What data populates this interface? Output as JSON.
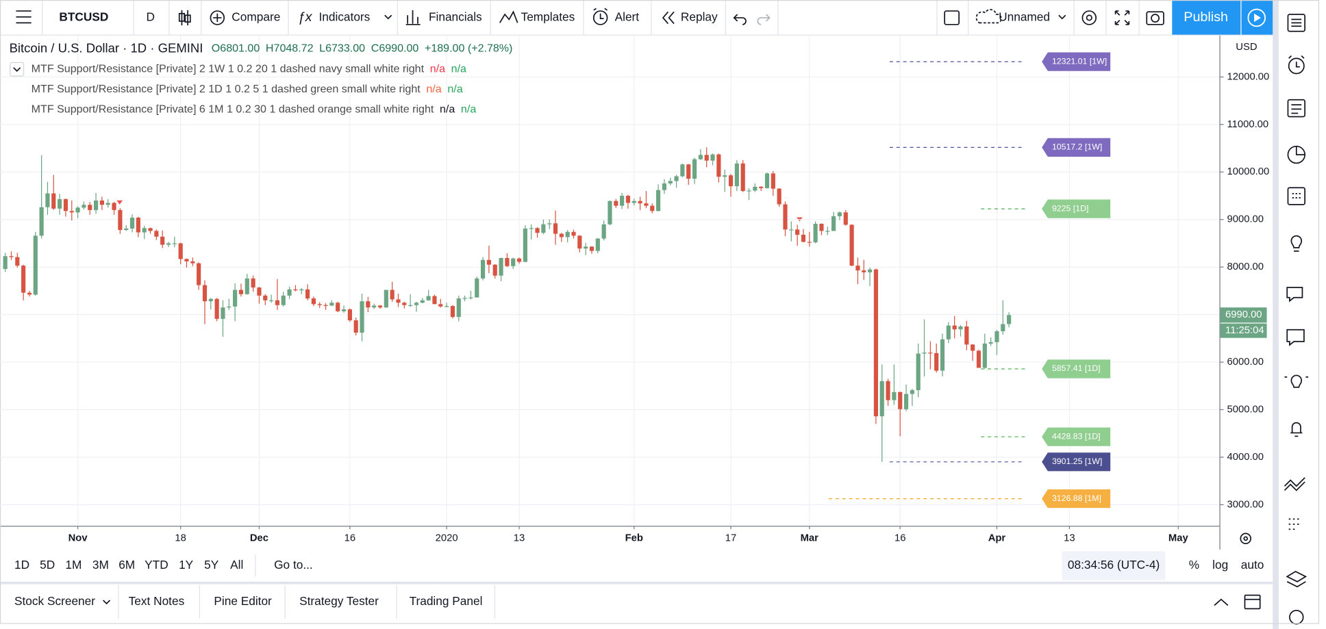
{
  "toolbar": {
    "symbol": "BTCUSD",
    "interval": "D",
    "buttons": [
      "Compare",
      "Indicators",
      "Financials",
      "Templates",
      "Alert",
      "Replay"
    ],
    "layout_name": "Unnamed",
    "publish": "Publish"
  },
  "chart_data": {
    "type": "candlestick",
    "title": "Bitcoin / U.S. Dollar · 1D · GEMINI",
    "ohlc": [
      "O6801.00",
      "H7048.72",
      "L6733.00",
      "C6990.00",
      "+189.00 (+2.78%)"
    ],
    "indicators": [
      {
        "text": "MTF Support/Resistance [Private] 2 1W 1 0.2 20 1 dashed navy small white right",
        "values": [
          {
            "text": "n/a",
            "color": "#f23645"
          },
          {
            "text": "n/a",
            "color": "#26a65b"
          }
        ]
      },
      {
        "text": "MTF Support/Resistance [Private] 2 1D 1 0.2 5 1 dashed green small white right",
        "values": [
          {
            "text": "n/a",
            "color": "#f0643c"
          },
          {
            "text": "n/a",
            "color": "#26a65b"
          }
        ]
      },
      {
        "text": "MTF Support/Resistance [Private] 6 1M 1 0.2 30 1 dashed orange small white right",
        "values": [
          {
            "text": "n/a",
            "color": "#131722"
          },
          {
            "text": "n/a",
            "color": "#26a65b"
          }
        ]
      }
    ],
    "up_color": "#6ba583",
    "down_color": "#d75442",
    "grid": true,
    "currency": "USD",
    "ylim": [
      2555,
      12872
    ],
    "yticks": [
      {
        "value": 3000,
        "label": "3000.00"
      },
      {
        "value": 4000,
        "label": "4000.00"
      },
      {
        "value": 5000,
        "label": "5000.00"
      },
      {
        "value": 6000,
        "label": "6000.00"
      },
      {
        "value": 7000,
        "label": "7000.00"
      },
      {
        "value": 8000,
        "label": "8000.00"
      },
      {
        "value": 9000,
        "label": "9000.00"
      },
      {
        "value": 10000,
        "label": "10000.00"
      },
      {
        "value": 11000,
        "label": "11000.00"
      },
      {
        "value": 12000,
        "label": "12000.00"
      }
    ],
    "x_labels": [
      {
        "label": "Nov",
        "day": 12
      },
      {
        "label": "18",
        "day": 29
      },
      {
        "label": "Dec",
        "day": 42
      },
      {
        "label": "16",
        "day": 57
      },
      {
        "label": "2020",
        "day": 73
      },
      {
        "label": "13",
        "day": 85
      },
      {
        "label": "Feb",
        "day": 104
      },
      {
        "label": "17",
        "day": 120
      },
      {
        "label": "Mar",
        "day": 133
      },
      {
        "label": "16",
        "day": 148
      },
      {
        "label": "Apr",
        "day": 164
      },
      {
        "label": "13",
        "day": 176
      },
      {
        "label": "May",
        "day": 194
      }
    ],
    "levels": [
      {
        "value": 12321.01,
        "label": "12321.01 [1W]",
        "color": "#7e6bbf",
        "line_color": "#4b4f9c"
      },
      {
        "value": 10517.2,
        "label": "10517.2 [1W]",
        "color": "#7e6bbf",
        "line_color": "#4b4f9c"
      },
      {
        "value": 9225,
        "label": "9225 [1D]",
        "color": "#8fce8f",
        "line_color": "#4caf50"
      },
      {
        "value": 5857.41,
        "label": "5857.41 [1D]",
        "color": "#8fce8f",
        "line_color": "#4caf50"
      },
      {
        "value": 4428.83,
        "label": "4428.83 [1D]",
        "color": "#8fce8f",
        "line_color": "#4caf50"
      },
      {
        "value": 3901.25,
        "label": "3901.25 [1W]",
        "color": "#4b4f8f",
        "line_color": "#4b4f9c"
      },
      {
        "value": 3126.88,
        "label": "3126.88 [1M]",
        "color": "#f5b041",
        "line_color": "#f5a623"
      }
    ],
    "last_price": {
      "value": 6990,
      "label": "6990.00"
    },
    "countdown": "11:25:04",
    "candles": [
      [
        7960,
        8300,
        7900,
        8230
      ],
      [
        8230,
        8330,
        8150,
        8210
      ],
      [
        8210,
        8300,
        7990,
        8030
      ],
      [
        8030,
        8050,
        7300,
        7460
      ],
      [
        7460,
        7500,
        7380,
        7420
      ],
      [
        7420,
        8740,
        7400,
        8660
      ],
      [
        8660,
        10350,
        8600,
        9260
      ],
      [
        9260,
        9790,
        9100,
        9550
      ],
      [
        9550,
        9940,
        9200,
        9230
      ],
      [
        9230,
        9540,
        9100,
        9430
      ],
      [
        9430,
        9440,
        9060,
        9180
      ],
      [
        9180,
        9400,
        8980,
        9150
      ],
      [
        9150,
        9280,
        9030,
        9250
      ],
      [
        9250,
        9380,
        9210,
        9310
      ],
      [
        9310,
        9370,
        9100,
        9200
      ],
      [
        9200,
        9560,
        9120,
        9400
      ],
      [
        9400,
        9480,
        9200,
        9310
      ],
      [
        9310,
        9430,
        9250,
        9350
      ],
      [
        9350,
        9370,
        9100,
        9200
      ],
      [
        9200,
        9240,
        8700,
        8780
      ],
      [
        8780,
        8880,
        8760,
        8810
      ],
      [
        8810,
        9110,
        8730,
        9040
      ],
      [
        9040,
        9060,
        8630,
        8730
      ],
      [
        8730,
        8870,
        8590,
        8820
      ],
      [
        8820,
        8830,
        8700,
        8760
      ],
      [
        8760,
        8790,
        8570,
        8640
      ],
      [
        8640,
        8770,
        8400,
        8470
      ],
      [
        8470,
        8530,
        8420,
        8500
      ],
      [
        8500,
        8640,
        8420,
        8500
      ],
      [
        8500,
        8510,
        8060,
        8170
      ],
      [
        8170,
        8180,
        7990,
        8120
      ],
      [
        8120,
        8200,
        8020,
        8080
      ],
      [
        8080,
        8100,
        7520,
        7620
      ],
      [
        7620,
        7720,
        6800,
        7280
      ],
      [
        7280,
        7350,
        7110,
        7330
      ],
      [
        7330,
        7350,
        6860,
        6910
      ],
      [
        6910,
        7300,
        6530,
        7150
      ],
      [
        7150,
        7330,
        7100,
        7170
      ],
      [
        7170,
        7660,
        6860,
        7520
      ],
      [
        7520,
        7650,
        7380,
        7430
      ],
      [
        7430,
        7860,
        7420,
        7760
      ],
      [
        7760,
        7820,
        7480,
        7570
      ],
      [
        7570,
        7580,
        7230,
        7400
      ],
      [
        7400,
        7430,
        7200,
        7300
      ],
      [
        7300,
        7420,
        7250,
        7300
      ],
      [
        7300,
        7750,
        7100,
        7200
      ],
      [
        7200,
        7480,
        7170,
        7400
      ],
      [
        7400,
        7590,
        7330,
        7530
      ],
      [
        7530,
        7620,
        7490,
        7510
      ],
      [
        7510,
        7560,
        7430,
        7530
      ],
      [
        7530,
        7640,
        7300,
        7340
      ],
      [
        7340,
        7380,
        7180,
        7220
      ],
      [
        7220,
        7260,
        7140,
        7200
      ],
      [
        7200,
        7240,
        7100,
        7190
      ],
      [
        7190,
        7300,
        7180,
        7250
      ],
      [
        7250,
        7270,
        7050,
        7070
      ],
      [
        7070,
        7190,
        7040,
        7110
      ],
      [
        7110,
        7130,
        6850,
        6880
      ],
      [
        6880,
        6940,
        6560,
        6620
      ],
      [
        6620,
        7440,
        6440,
        7280
      ],
      [
        7280,
        7370,
        7050,
        7150
      ],
      [
        7150,
        7230,
        7120,
        7190
      ],
      [
        7190,
        7200,
        7120,
        7150
      ],
      [
        7150,
        7520,
        7140,
        7520
      ],
      [
        7520,
        7690,
        7270,
        7320
      ],
      [
        7320,
        7440,
        7160,
        7250
      ],
      [
        7250,
        7270,
        7130,
        7200
      ],
      [
        7200,
        7430,
        7160,
        7200
      ],
      [
        7200,
        7270,
        7060,
        7250
      ],
      [
        7250,
        7350,
        7240,
        7300
      ],
      [
        7300,
        7520,
        7290,
        7390
      ],
      [
        7390,
        7420,
        7230,
        7220
      ],
      [
        7220,
        7330,
        7150,
        7170
      ],
      [
        7170,
        7250,
        7150,
        7180
      ],
      [
        7180,
        7200,
        6920,
        6950
      ],
      [
        6950,
        7400,
        6860,
        7340
      ],
      [
        7340,
        7400,
        7280,
        7350
      ],
      [
        7350,
        7500,
        7320,
        7360
      ],
      [
        7360,
        7800,
        7360,
        7760
      ],
      [
        7760,
        8210,
        7720,
        8150
      ],
      [
        8150,
        8450,
        7870,
        8050
      ],
      [
        8050,
        8060,
        7760,
        7820
      ],
      [
        7820,
        8200,
        7700,
        8190
      ],
      [
        8190,
        8290,
        8000,
        8020
      ],
      [
        8020,
        8200,
        7960,
        8180
      ],
      [
        8180,
        8200,
        8070,
        8110
      ],
      [
        8110,
        8880,
        8100,
        8810
      ],
      [
        8810,
        8900,
        8580,
        8820
      ],
      [
        8820,
        8840,
        8620,
        8720
      ],
      [
        8720,
        9000,
        8690,
        8900
      ],
      [
        8900,
        9000,
        8800,
        8920
      ],
      [
        8920,
        9190,
        8470,
        8700
      ],
      [
        8700,
        8720,
        8530,
        8630
      ],
      [
        8630,
        8780,
        8520,
        8740
      ],
      [
        8740,
        8790,
        8600,
        8660
      ],
      [
        8660,
        8670,
        8310,
        8390
      ],
      [
        8390,
        8510,
        8250,
        8430
      ],
      [
        8430,
        8440,
        8280,
        8340
      ],
      [
        8340,
        8610,
        8290,
        8600
      ],
      [
        8600,
        8980,
        8560,
        8900
      ],
      [
        8900,
        9400,
        8880,
        9390
      ],
      [
        9390,
        9430,
        9240,
        9290
      ],
      [
        9290,
        9560,
        9220,
        9500
      ],
      [
        9500,
        9520,
        9230,
        9350
      ],
      [
        9350,
        9440,
        9300,
        9390
      ],
      [
        9390,
        9480,
        9200,
        9340
      ],
      [
        9340,
        9600,
        9240,
        9290
      ],
      [
        9290,
        9340,
        9130,
        9180
      ],
      [
        9180,
        9740,
        9170,
        9620
      ],
      [
        9620,
        9850,
        9540,
        9760
      ],
      [
        9760,
        9880,
        9720,
        9810
      ],
      [
        9810,
        9940,
        9670,
        9910
      ],
      [
        9910,
        10180,
        9890,
        10160
      ],
      [
        10160,
        10170,
        9730,
        9860
      ],
      [
        9860,
        10300,
        9750,
        10270
      ],
      [
        10270,
        10480,
        10250,
        10360
      ],
      [
        10360,
        10520,
        10100,
        10240
      ],
      [
        10240,
        10390,
        10140,
        10370
      ],
      [
        10370,
        10390,
        9780,
        9900
      ],
      [
        9900,
        10050,
        9580,
        9930
      ],
      [
        9930,
        9960,
        9480,
        9700
      ],
      [
        9700,
        10250,
        9600,
        10180
      ],
      [
        10180,
        10250,
        9580,
        9600
      ],
      [
        9600,
        9660,
        9410,
        9610
      ],
      [
        9610,
        9760,
        9580,
        9690
      ],
      [
        9690,
        9700,
        9600,
        9660
      ],
      [
        9660,
        9990,
        9650,
        9970
      ],
      [
        9970,
        10020,
        9500,
        9650
      ],
      [
        9650,
        9660,
        9270,
        9320
      ],
      [
        9320,
        9380,
        8650,
        8790
      ],
      [
        8790,
        8960,
        8540,
        8790
      ],
      [
        8790,
        8890,
        8450,
        8680
      ],
      [
        8680,
        8800,
        8520,
        8530
      ],
      [
        8530,
        8740,
        8430,
        8520
      ],
      [
        8520,
        8960,
        8500,
        8910
      ],
      [
        8910,
        8920,
        8670,
        8760
      ],
      [
        8760,
        8850,
        8670,
        8760
      ],
      [
        8760,
        9160,
        8760,
        9070
      ],
      [
        9070,
        9170,
        8990,
        9150
      ],
      [
        9150,
        9200,
        8870,
        8890
      ],
      [
        8890,
        8900,
        8020,
        8030
      ],
      [
        8030,
        8200,
        7640,
        7930
      ],
      [
        7930,
        8150,
        7730,
        7890
      ],
      [
        7890,
        7990,
        7600,
        7950
      ],
      [
        7950,
        7970,
        4700,
        4860
      ],
      [
        4860,
        5950,
        3901,
        5600
      ],
      [
        5600,
        5650,
        5080,
        5200
      ],
      [
        5200,
        5950,
        5100,
        5370
      ],
      [
        5370,
        5380,
        4440,
        5010
      ],
      [
        5010,
        5530,
        4970,
        5330
      ],
      [
        5330,
        5440,
        5080,
        5410
      ],
      [
        5410,
        6390,
        5260,
        6180
      ],
      [
        6180,
        6900,
        5700,
        6200
      ],
      [
        6200,
        6440,
        5850,
        6190
      ],
      [
        6190,
        6390,
        5780,
        5820
      ],
      [
        5820,
        6600,
        5700,
        6480
      ],
      [
        6480,
        6840,
        6400,
        6770
      ],
      [
        6770,
        6970,
        6500,
        6690
      ],
      [
        6690,
        6780,
        6540,
        6750
      ],
      [
        6750,
        6870,
        6250,
        6370
      ],
      [
        6370,
        6380,
        6030,
        6240
      ],
      [
        6240,
        6260,
        5880,
        5880
      ],
      [
        5880,
        6600,
        5860,
        6390
      ],
      [
        6390,
        6520,
        6340,
        6420
      ],
      [
        6420,
        6680,
        6150,
        6650
      ],
      [
        6650,
        7300,
        6580,
        6800
      ],
      [
        6801,
        7048.72,
        6733,
        6990
      ]
    ]
  },
  "range_bar": {
    "ranges": [
      "1D",
      "5D",
      "1M",
      "3M",
      "6M",
      "YTD",
      "1Y",
      "5Y",
      "All"
    ],
    "goto": "Go to...",
    "clock": "08:34:56 (UTC-4)",
    "options": [
      "%",
      "log",
      "auto"
    ]
  },
  "panels": [
    "Stock Screener",
    "Text Notes",
    "Pine Editor",
    "Strategy Tester",
    "Trading Panel"
  ]
}
